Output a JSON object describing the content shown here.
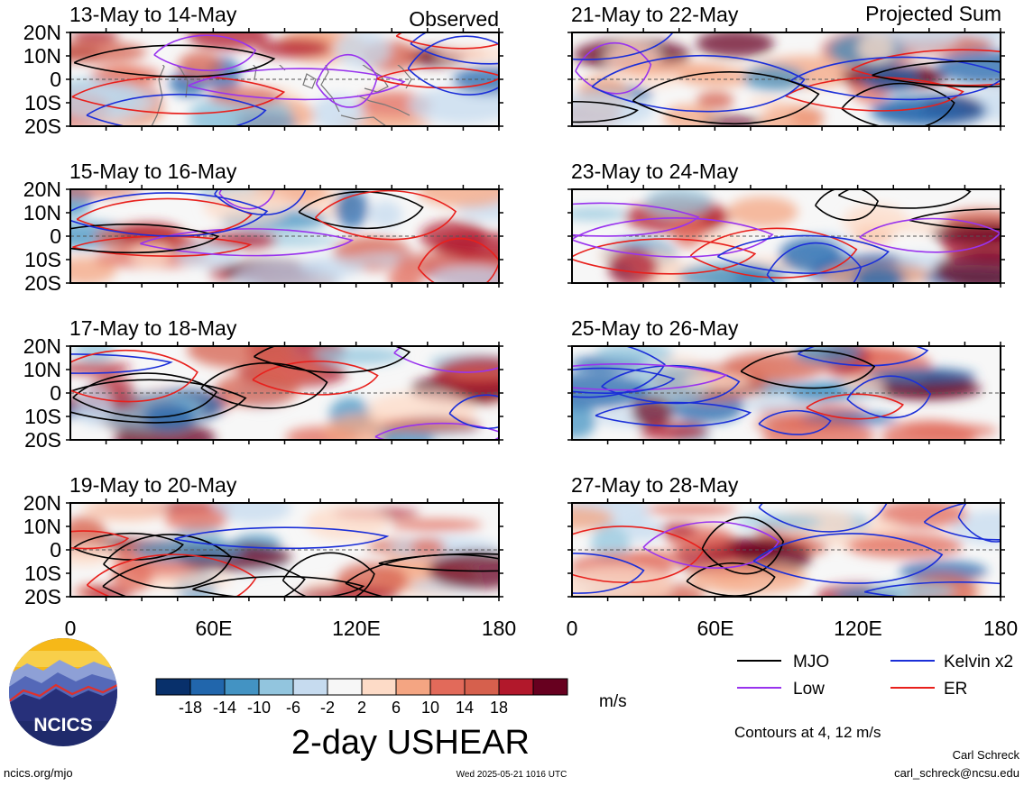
{
  "columns": {
    "left": {
      "label": "Observed"
    },
    "right": {
      "label": "Projected Sum"
    }
  },
  "panels": {
    "left": [
      {
        "title": "13-May to 14-May"
      },
      {
        "title": "15-May to 16-May"
      },
      {
        "title": "17-May to 18-May"
      },
      {
        "title": "19-May to 20-May"
      }
    ],
    "right": [
      {
        "title": "21-May to 22-May"
      },
      {
        "title": "23-May to 24-May"
      },
      {
        "title": "25-May to 26-May"
      },
      {
        "title": "27-May to 28-May"
      }
    ]
  },
  "axes": {
    "lat_ticks": [
      "20N",
      "10N",
      "0",
      "10S",
      "20S"
    ],
    "lon_ticks": [
      "0",
      "60E",
      "120E",
      "180"
    ]
  },
  "colorbar": {
    "labels": [
      "-18",
      "-14",
      "-10",
      "-6",
      "-2",
      "2",
      "6",
      "10",
      "14",
      "18"
    ],
    "colors": [
      "#08306b",
      "#2166ac",
      "#4393c3",
      "#92c5de",
      "#c6dbef",
      "#f7f7f7",
      "#fddbc7",
      "#f4a582",
      "#e26a5a",
      "#d6604d",
      "#b2182b",
      "#67001f"
    ],
    "unit": "m/s"
  },
  "legend": {
    "mjo": {
      "label": "MJO",
      "color": "#000000"
    },
    "low": {
      "label": "Low",
      "color": "#9933ee"
    },
    "kelvin": {
      "label": "Kelvin x2",
      "color": "#1b2fd8"
    },
    "er": {
      "label": "ER",
      "color": "#e8201c"
    }
  },
  "contours_note": "Contours at 4, 12 m/s",
  "main_title": "2-day USHEAR",
  "logo": {
    "text": "NCICS"
  },
  "footer": {
    "url": "ncics.org/mjo",
    "timestamp": "Wed 2025-05-21 1016 UTC",
    "author": "Carl Schreck",
    "email": "carl_schreck@ncsu.edu"
  }
}
